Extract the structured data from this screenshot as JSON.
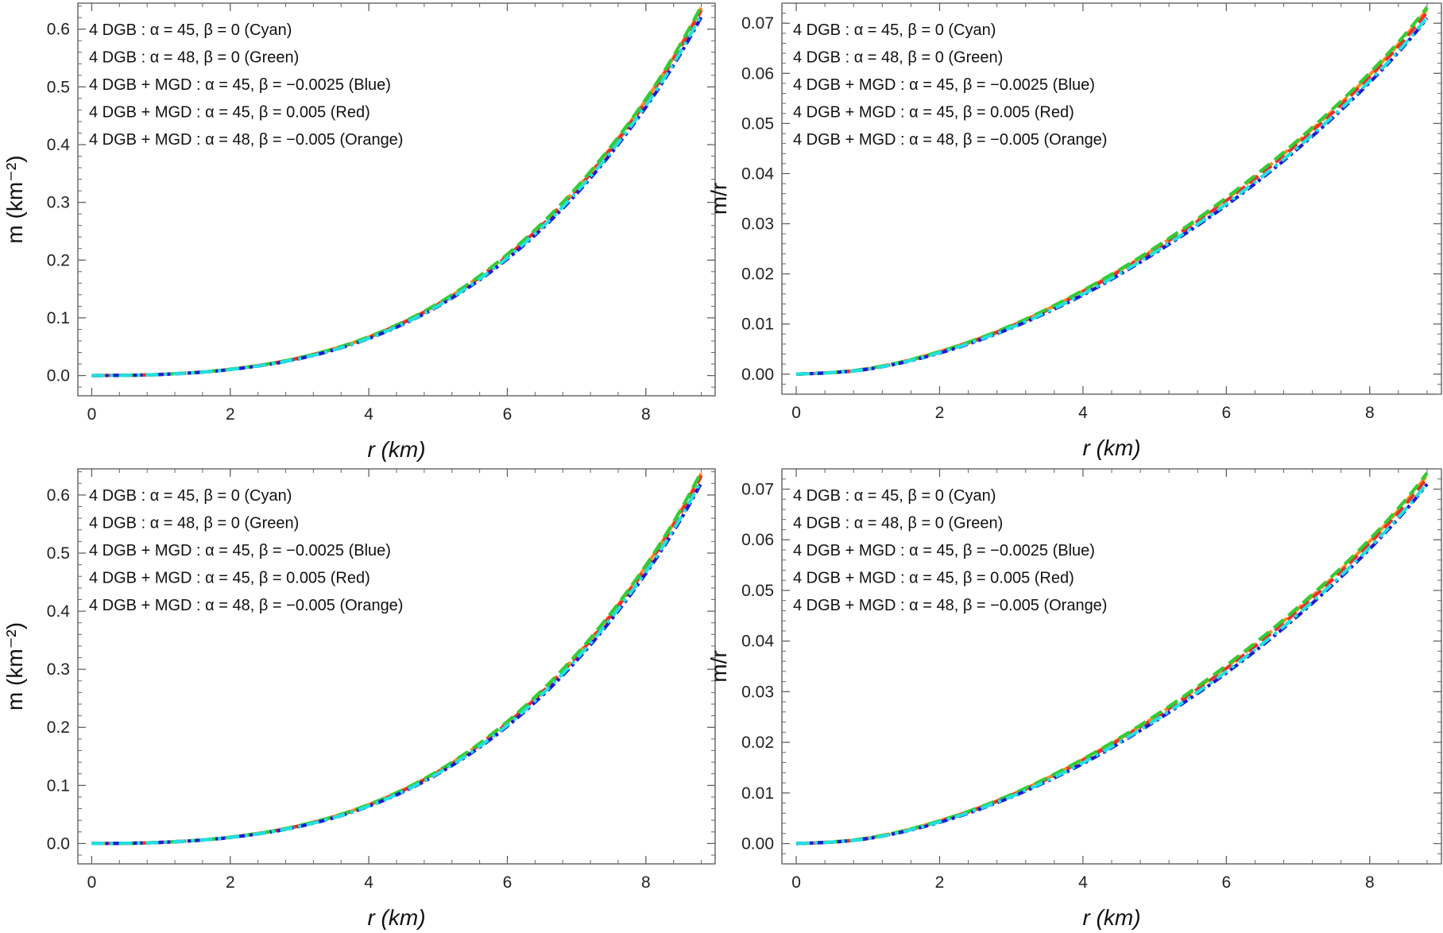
{
  "legend": [
    "4 DGB :  α = 45,  β = 0 (Cyan)",
    "4 DGB : α = 48,  β = 0 (Green)",
    "4 DGB + MGD : α = 45,  β = −0.0025 (Blue)",
    "4 DGB + MGD : α = 45,  β = 0.005 (Red)",
    "4 DGB + MGD : α = 48,  β = −0.005 (Orange)"
  ],
  "colors": {
    "Cyan": "#22e0e0",
    "Green": "#33cc33",
    "Blue": "#1a1ad6",
    "Red": "#e8322a",
    "Orange": "#ff8c1a"
  },
  "chart_data": [
    {
      "type": "line",
      "panel": "top-left",
      "xlabel": "r (km)",
      "ylabel": "m (km⁻²)",
      "xlim": [
        -0.2,
        9.0
      ],
      "ylim": [
        -0.035,
        0.645
      ],
      "xticks": [
        "0",
        "2",
        "4",
        "6",
        "8"
      ],
      "yticks": [
        "0.0",
        "0.1",
        "0.2",
        "0.3",
        "0.4",
        "0.5",
        "0.6"
      ],
      "x": [
        0,
        1,
        2,
        3,
        4,
        5,
        6,
        7,
        8,
        8.8
      ],
      "series": [
        {
          "name": "Cyan",
          "values": [
            0,
            0.0019,
            0.0105,
            0.0295,
            0.0646,
            0.121,
            0.204,
            0.318,
            0.468,
            0.625
          ]
        },
        {
          "name": "Green",
          "values": [
            0,
            0.002,
            0.011,
            0.031,
            0.0672,
            0.125,
            0.21,
            0.326,
            0.479,
            0.64
          ]
        },
        {
          "name": "Blue",
          "values": [
            0,
            0.0019,
            0.0104,
            0.0293,
            0.0641,
            0.12,
            0.202,
            0.315,
            0.465,
            0.621
          ]
        },
        {
          "name": "Red",
          "values": [
            0,
            0.002,
            0.0108,
            0.0305,
            0.0662,
            0.123,
            0.207,
            0.322,
            0.474,
            0.633
          ]
        },
        {
          "name": "Orange",
          "values": [
            0,
            0.002,
            0.0109,
            0.0308,
            0.0668,
            0.124,
            0.209,
            0.324,
            0.477,
            0.637
          ]
        }
      ]
    },
    {
      "type": "line",
      "panel": "top-right",
      "xlabel": "r (km)",
      "ylabel": "m/r",
      "xlim": [
        -0.2,
        9.0
      ],
      "ylim": [
        -0.004,
        0.074
      ],
      "xticks": [
        "0",
        "2",
        "4",
        "6",
        "8"
      ],
      "yticks": [
        "0.00",
        "0.01",
        "0.02",
        "0.03",
        "0.04",
        "0.05",
        "0.06",
        "0.07"
      ],
      "x": [
        0,
        1,
        2,
        3,
        4,
        5,
        6,
        7,
        8,
        8.8
      ],
      "series": [
        {
          "name": "Cyan",
          "values": [
            0,
            0.001,
            0.0043,
            0.0093,
            0.016,
            0.0243,
            0.034,
            0.0453,
            0.0585,
            0.0712
          ]
        },
        {
          "name": "Green",
          "values": [
            0,
            0.0011,
            0.0045,
            0.0097,
            0.0167,
            0.0252,
            0.0352,
            0.0467,
            0.0601,
            0.0732
          ]
        },
        {
          "name": "Blue",
          "values": [
            0,
            0.001,
            0.0042,
            0.0092,
            0.0158,
            0.0241,
            0.0337,
            0.045,
            0.0582,
            0.071
          ]
        },
        {
          "name": "Red",
          "values": [
            0,
            0.001,
            0.0044,
            0.0095,
            0.0164,
            0.0248,
            0.0346,
            0.046,
            0.0593,
            0.0722
          ]
        },
        {
          "name": "Orange",
          "values": [
            0,
            0.0011,
            0.0045,
            0.0096,
            0.0166,
            0.025,
            0.0349,
            0.0464,
            0.0597,
            0.0728
          ]
        }
      ]
    },
    {
      "type": "line",
      "panel": "bottom-left",
      "xlabel": "r (km)",
      "ylabel": "m (km⁻²)",
      "xlim": [
        -0.2,
        9.0
      ],
      "ylim": [
        -0.035,
        0.645
      ],
      "xticks": [
        "0",
        "2",
        "4",
        "6",
        "8"
      ],
      "yticks": [
        "0.0",
        "0.1",
        "0.2",
        "0.3",
        "0.4",
        "0.5",
        "0.6"
      ],
      "x": [
        0,
        1,
        2,
        3,
        4,
        5,
        6,
        7,
        8,
        8.8
      ],
      "series": [
        {
          "name": "Cyan",
          "values": [
            0,
            0.0019,
            0.0105,
            0.0295,
            0.0646,
            0.121,
            0.204,
            0.318,
            0.468,
            0.625
          ]
        },
        {
          "name": "Green",
          "values": [
            0,
            0.002,
            0.011,
            0.031,
            0.0672,
            0.125,
            0.21,
            0.326,
            0.479,
            0.64
          ]
        },
        {
          "name": "Blue",
          "values": [
            0,
            0.0019,
            0.0104,
            0.0293,
            0.0641,
            0.12,
            0.202,
            0.315,
            0.465,
            0.621
          ]
        },
        {
          "name": "Red",
          "values": [
            0,
            0.002,
            0.0108,
            0.0305,
            0.0662,
            0.123,
            0.207,
            0.322,
            0.474,
            0.633
          ]
        },
        {
          "name": "Orange",
          "values": [
            0,
            0.002,
            0.0109,
            0.0308,
            0.0668,
            0.124,
            0.209,
            0.324,
            0.477,
            0.637
          ]
        }
      ]
    },
    {
      "type": "line",
      "panel": "bottom-right",
      "xlabel": "r (km)",
      "ylabel": "m/r",
      "xlim": [
        -0.2,
        9.0
      ],
      "ylim": [
        -0.004,
        0.074
      ],
      "xticks": [
        "0",
        "2",
        "4",
        "6",
        "8"
      ],
      "yticks": [
        "0.00",
        "0.01",
        "0.02",
        "0.03",
        "0.04",
        "0.05",
        "0.06",
        "0.07"
      ],
      "x": [
        0,
        1,
        2,
        3,
        4,
        5,
        6,
        7,
        8,
        8.8
      ],
      "series": [
        {
          "name": "Cyan",
          "values": [
            0,
            0.001,
            0.0043,
            0.0093,
            0.016,
            0.0243,
            0.034,
            0.0453,
            0.0585,
            0.0712
          ]
        },
        {
          "name": "Green",
          "values": [
            0,
            0.0011,
            0.0045,
            0.0097,
            0.0167,
            0.0252,
            0.0352,
            0.0467,
            0.0601,
            0.0732
          ]
        },
        {
          "name": "Blue",
          "values": [
            0,
            0.001,
            0.0042,
            0.0092,
            0.0158,
            0.0241,
            0.0337,
            0.045,
            0.0582,
            0.071
          ]
        },
        {
          "name": "Red",
          "values": [
            0,
            0.001,
            0.0044,
            0.0095,
            0.0164,
            0.0248,
            0.0346,
            0.046,
            0.0593,
            0.0722
          ]
        },
        {
          "name": "Orange",
          "values": [
            0,
            0.0011,
            0.0045,
            0.0096,
            0.0166,
            0.025,
            0.0349,
            0.0464,
            0.0597,
            0.0728
          ]
        }
      ]
    }
  ]
}
